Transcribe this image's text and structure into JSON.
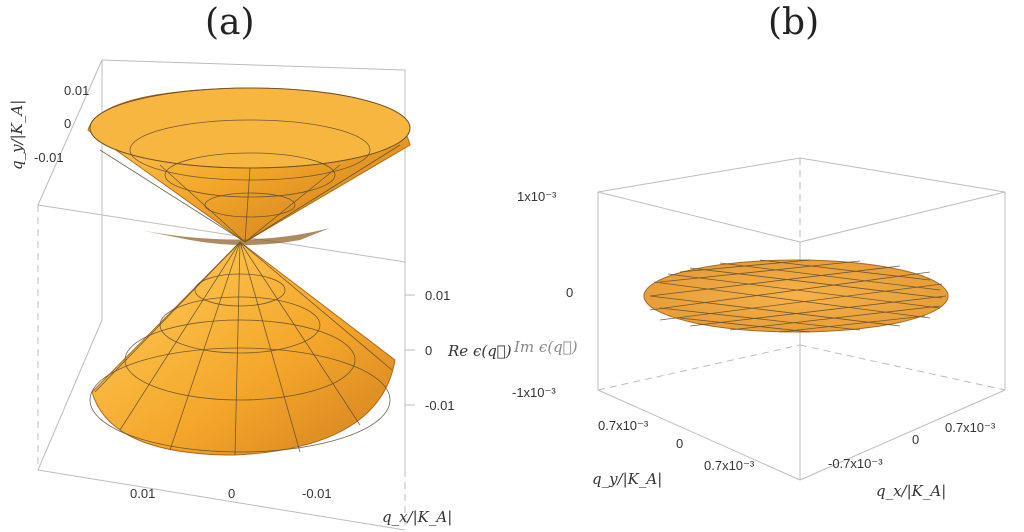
{
  "chart_data": [
    {
      "type": "surface3d",
      "panel_label": "(a)",
      "zlabel": "Re ϵ(q⃗)",
      "xlabel": "q_x/|K_A|",
      "ylabel": "q_y/|K_A|",
      "x_ticks": [
        "0.01",
        "0",
        "-0.01"
      ],
      "y_ticks": [
        "0.01",
        "0",
        "-0.01"
      ],
      "z_ticks": [
        "0.01",
        "0",
        "-0.01"
      ],
      "zlim": [
        -0.015,
        0.015
      ],
      "surface_color": "#f2a82a",
      "series": [
        {
          "name": "upper cone",
          "apex": 0,
          "rim": 0.015
        },
        {
          "name": "lower cone",
          "apex": 0,
          "rim": -0.015
        }
      ]
    },
    {
      "type": "surface3d",
      "panel_label": "(b)",
      "zlabel": "Im ϵ(q⃗)",
      "xlabel": "q_x/|K_A|",
      "ylabel": "q_y/|K_A|",
      "x_ticks": [
        "0",
        "0.7x10⁻³",
        "-0.7x10⁻³"
      ],
      "y_ticks": [
        "0.7x10⁻³",
        "0",
        "0.7x10⁻³"
      ],
      "z_ticks": [
        "1x10⁻³",
        "0",
        "-1x10⁻³"
      ],
      "zlim": [
        -0.001,
        0.001
      ],
      "surface_color": "#f2a82a",
      "series": [
        {
          "name": "flat disk",
          "value": 0
        }
      ]
    }
  ]
}
